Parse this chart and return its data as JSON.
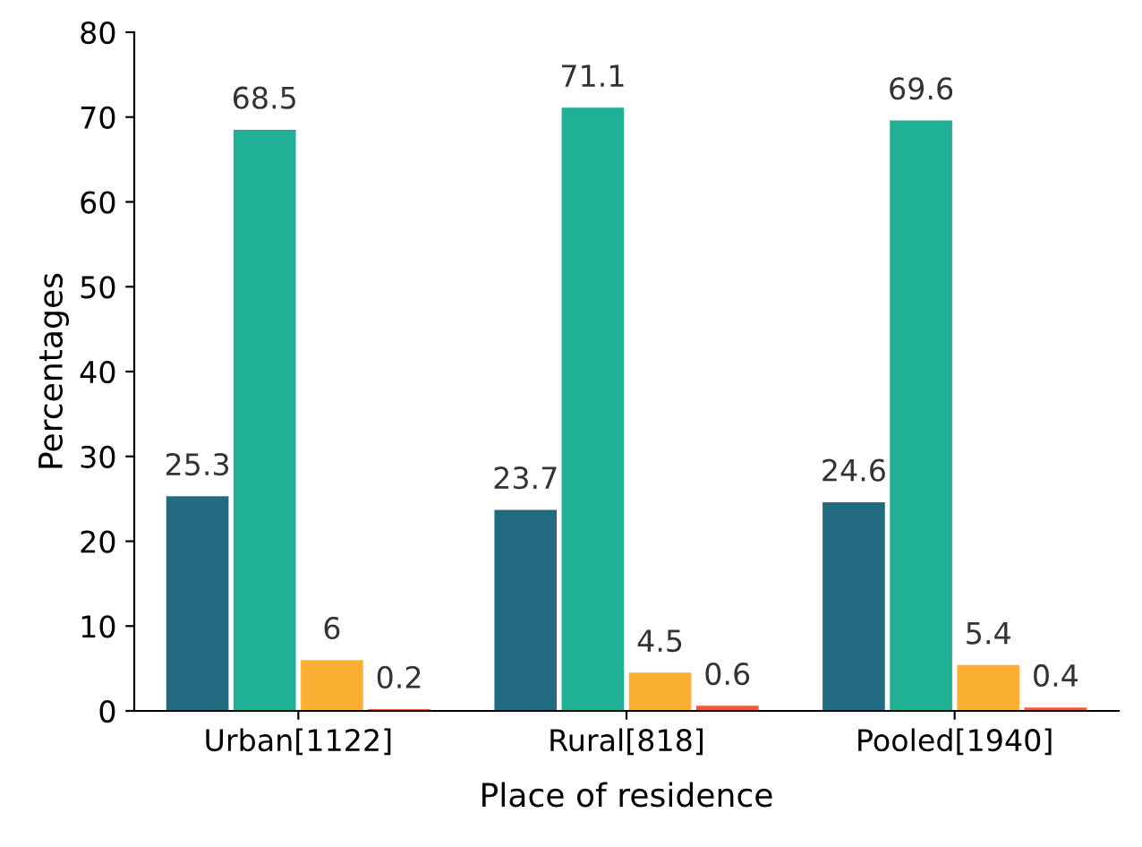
{
  "chart_data": {
    "type": "bar",
    "xlabel": "Place of residence",
    "ylabel": "Percentages",
    "categories": [
      "Urban[1122]",
      "Rural[818]",
      "Pooled[1940]"
    ],
    "series": [
      {
        "color": "#236b80",
        "values": [
          25.3,
          23.7,
          24.6
        ]
      },
      {
        "color": "#20b096",
        "values": [
          68.5,
          71.1,
          69.6
        ]
      },
      {
        "color": "#fbb034",
        "values": [
          6,
          4.5,
          5.4
        ]
      },
      {
        "color": "#f05a3a",
        "values": [
          0.2,
          0.6,
          0.4
        ]
      }
    ],
    "ylim": [
      0,
      80
    ],
    "yticks": [
      0,
      10,
      20,
      30,
      40,
      50,
      60,
      70,
      80
    ],
    "grid": false,
    "legend": false,
    "data_labels": true
  }
}
